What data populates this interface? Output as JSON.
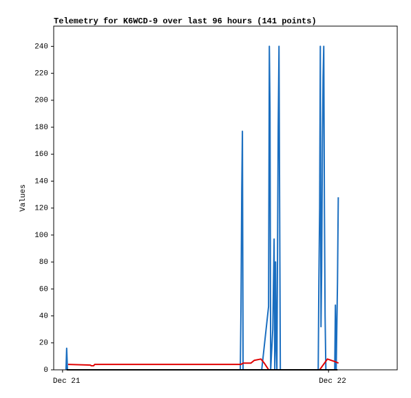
{
  "chart_data": {
    "type": "line",
    "title": "Telemetry for K6WCD-9 over last 96 hours (141 points)",
    "y_label": "Values",
    "xlim": [
      -0.8,
      30.2
    ],
    "xticks": [
      {
        "value": 0,
        "label": "Dec 21"
      },
      {
        "value": 24,
        "label": "Dec 22"
      }
    ],
    "ylim": [
      0,
      255
    ],
    "yticks": [
      0,
      20,
      40,
      60,
      80,
      100,
      120,
      140,
      160,
      180,
      200,
      220,
      240
    ],
    "grid": false,
    "series": [
      {
        "color": "#1a6ec0",
        "x": [
          0.31,
          0.37,
          0.44,
          16.04,
          16.1,
          16.17,
          16.23,
          16.29,
          17.97,
          18.59,
          18.66,
          18.72,
          18.78,
          18.97,
          19.09,
          19.15,
          19.22,
          19.28,
          19.34,
          19.46,
          19.53,
          19.59,
          19.65,
          23.07,
          23.13,
          23.2,
          23.26,
          23.32,
          23.38,
          23.45,
          23.51,
          23.57,
          23.63,
          23.69,
          23.76,
          24.56,
          24.62,
          24.69,
          24.81,
          24.88
        ],
        "values": [
          0,
          16,
          0,
          0,
          45,
          133,
          177,
          0,
          0,
          47,
          240,
          192,
          0,
          30,
          97,
          0,
          80,
          16,
          0,
          180,
          240,
          120,
          0,
          0,
          65,
          120,
          240,
          32,
          73,
          168,
          217,
          240,
          120,
          40,
          0,
          0,
          48,
          0,
          65,
          128
        ]
      },
      {
        "color": "#e00000",
        "x": [
          0.5,
          2.5,
          2.6,
          2.8,
          2.9,
          16.1,
          16.3,
          17.0,
          17.3,
          17.9,
          18.2,
          18.6,
          23.2,
          23.9,
          24.6,
          24.9
        ],
        "values": [
          4,
          3.5,
          3,
          3,
          4,
          4,
          5,
          5,
          7,
          8,
          5,
          0,
          0,
          8,
          6,
          5
        ]
      },
      {
        "color": "#000000",
        "x": [
          0.37,
          24.81
        ],
        "values": [
          0,
          0
        ]
      }
    ]
  }
}
